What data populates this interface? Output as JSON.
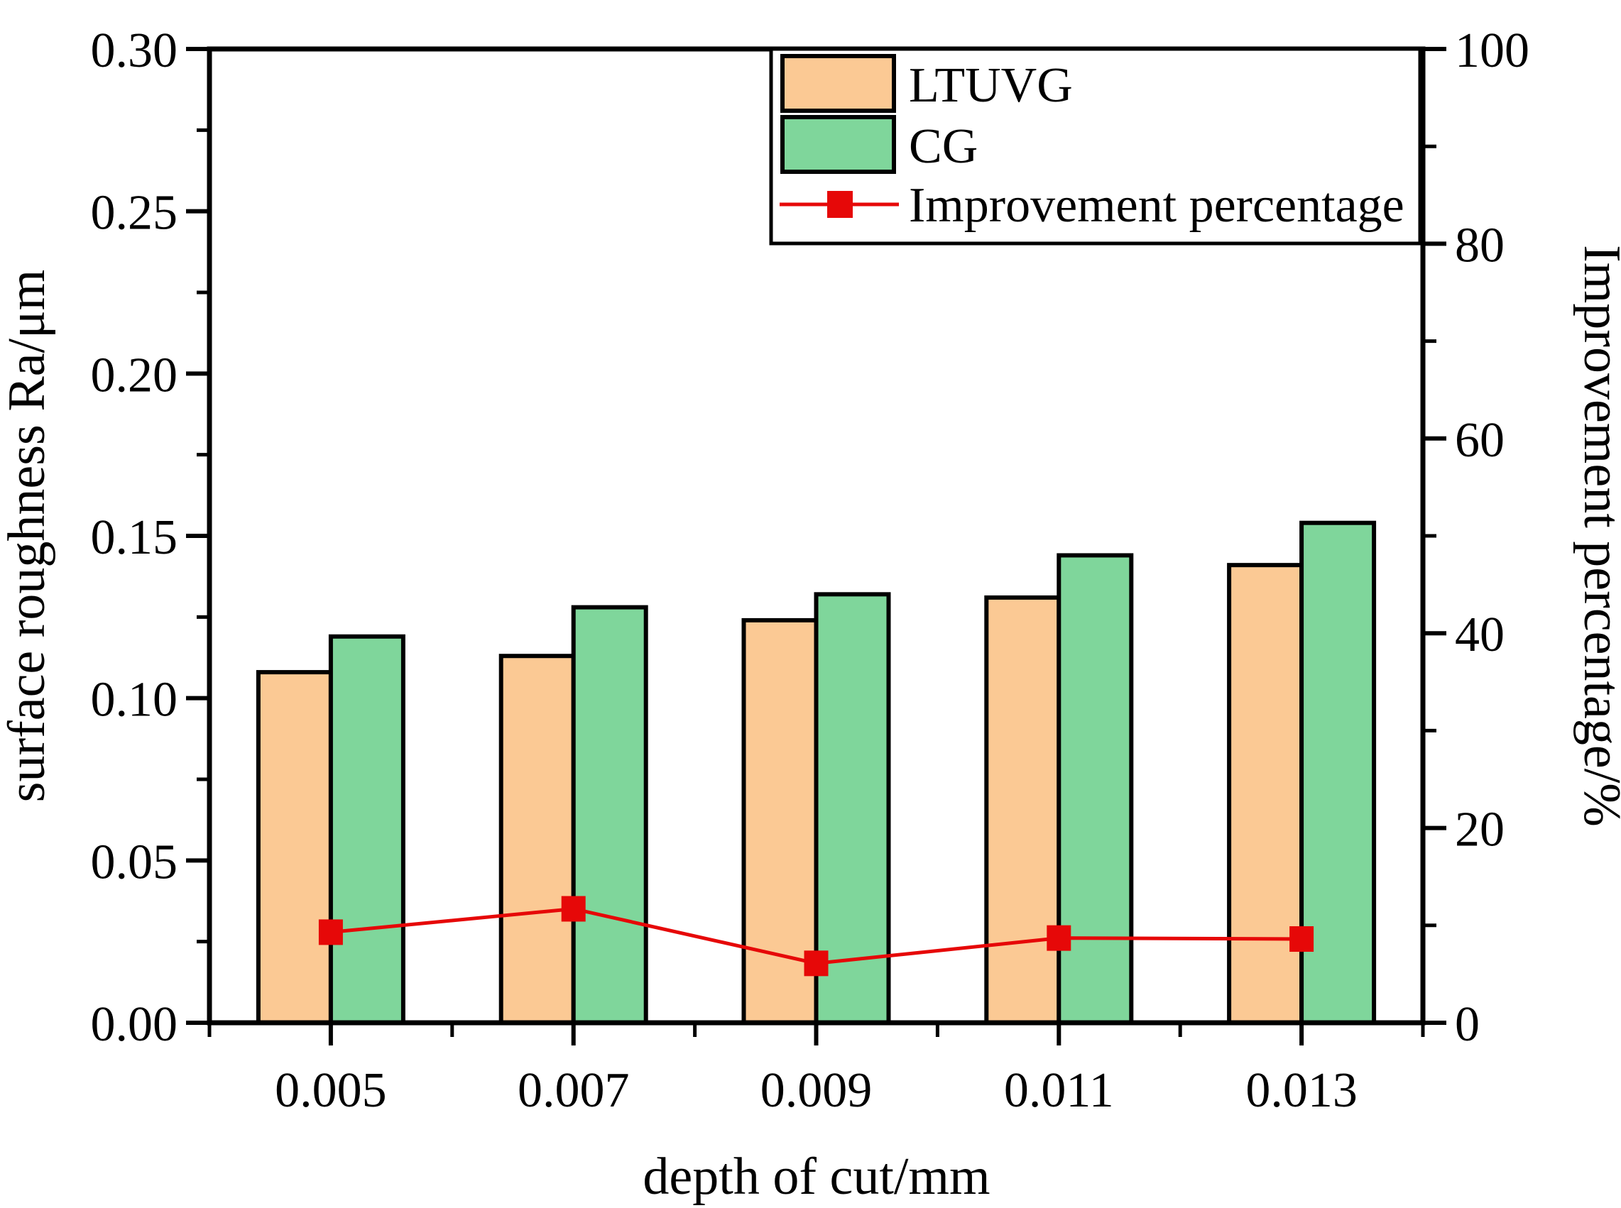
{
  "figure": {
    "background": "#ffffff",
    "frame_color": "#000000"
  },
  "chart_data": {
    "type": "bar",
    "subtype": "grouped-bars-with-line-overlay",
    "categories": [
      "0.005",
      "0.007",
      "0.009",
      "0.011",
      "0.013"
    ],
    "series": [
      {
        "name": "LTUVG",
        "type": "bar",
        "axis": "left",
        "color": "#fbc994",
        "edge_color": "#000000",
        "values": [
          0.108,
          0.113,
          0.124,
          0.131,
          0.141
        ]
      },
      {
        "name": "CG",
        "type": "bar",
        "axis": "left",
        "color": "#7fd69b",
        "edge_color": "#000000",
        "values": [
          0.119,
          0.128,
          0.132,
          0.144,
          0.154
        ]
      },
      {
        "name": "Improvement percentage",
        "type": "line",
        "axis": "right",
        "color": "#e60808",
        "marker": "filled-square",
        "values": [
          9.3,
          11.7,
          6.1,
          8.7,
          8.6
        ]
      }
    ],
    "left_axis": {
      "label": "surface roughness Ra/μm",
      "min": 0.0,
      "max": 0.3,
      "major_step": 0.05,
      "minor_step": 0.025,
      "tick_labels": [
        "0.00",
        "0.05",
        "0.10",
        "0.15",
        "0.20",
        "0.25",
        "0.30"
      ]
    },
    "right_axis": {
      "label": "Improvement percentage/%",
      "min": 0,
      "max": 100,
      "major_step": 20,
      "minor_step": 10,
      "tick_labels": [
        "0",
        "20",
        "40",
        "60",
        "80",
        "100"
      ]
    },
    "x_axis": {
      "label": "depth of cut/mm",
      "tick_labels": [
        "0.005",
        "0.007",
        "0.009",
        "0.011",
        "0.013"
      ]
    },
    "legend": {
      "position": "top-right",
      "border": true,
      "entries": [
        "LTUVG",
        "CG",
        "Improvement percentage"
      ]
    },
    "grid": false
  }
}
